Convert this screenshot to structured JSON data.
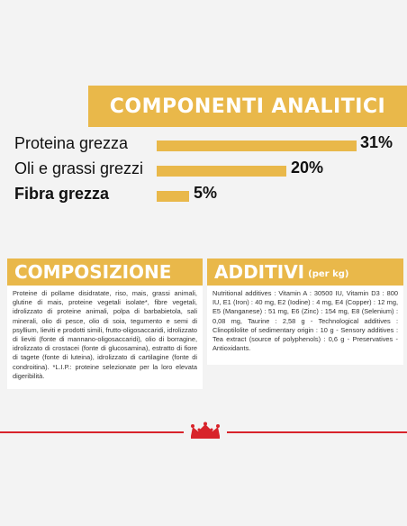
{
  "analytics": {
    "title": "COMPONENTI ANALITICI",
    "rows": [
      {
        "label": "Proteina grezza",
        "percent": "31%",
        "value": 31
      },
      {
        "label": "Oli e grassi grezzi",
        "percent": "20%",
        "value": 20
      },
      {
        "label": "Fibra grezza",
        "percent": "5%",
        "value": 5
      }
    ]
  },
  "composition": {
    "title": "COMPOSIZIONE",
    "text": "Proteine di pollame disidratate, riso, mais, grassi animali, glutine di mais, proteine vegetali isolate*, fibre vegetali, idrolizzato di proteine animali, polpa di barbabietola, sali minerali, olio di pesce, olio di soia, tegumento e semi di psyllium, lieviti e prodotti simili, frutto-oligosaccaridi, idrolizzato di lieviti (fonte di mannano-oligosaccaridi), olio di borragine, idrolizzato di crostacei (fonte di glucosamina), estratto di fiore di tagete (fonte di luteina), idrolizzato di cartilagine (fonte di condroitina). *L.I.P.: proteine selezionate per la loro elevata digeribilità."
  },
  "additives": {
    "title": "ADDITIVI",
    "subtitle": "(per kg)",
    "text": "Nutritional additives : Vitamin A : 30500 IU, Vitamin D3 : 800 IU, E1 (Iron) : 40 mg, E2 (Iodine) : 4 mg, E4 (Copper) : 12 mg, E5 (Manganese) : 51 mg, E6 (Zinc) : 154 mg, E8 (Selenium) : 0,08 mg, Taurine : 2,58 g - Technological additives : Clinoptilolite of sedimentary origin : 10 g - Sensory additives : Tea extract (source of polyphenols) : 0,6 g - Preservatives - Antioxidants."
  },
  "colors": {
    "accent": "#e9b84a",
    "brand_red": "#d8232a"
  }
}
